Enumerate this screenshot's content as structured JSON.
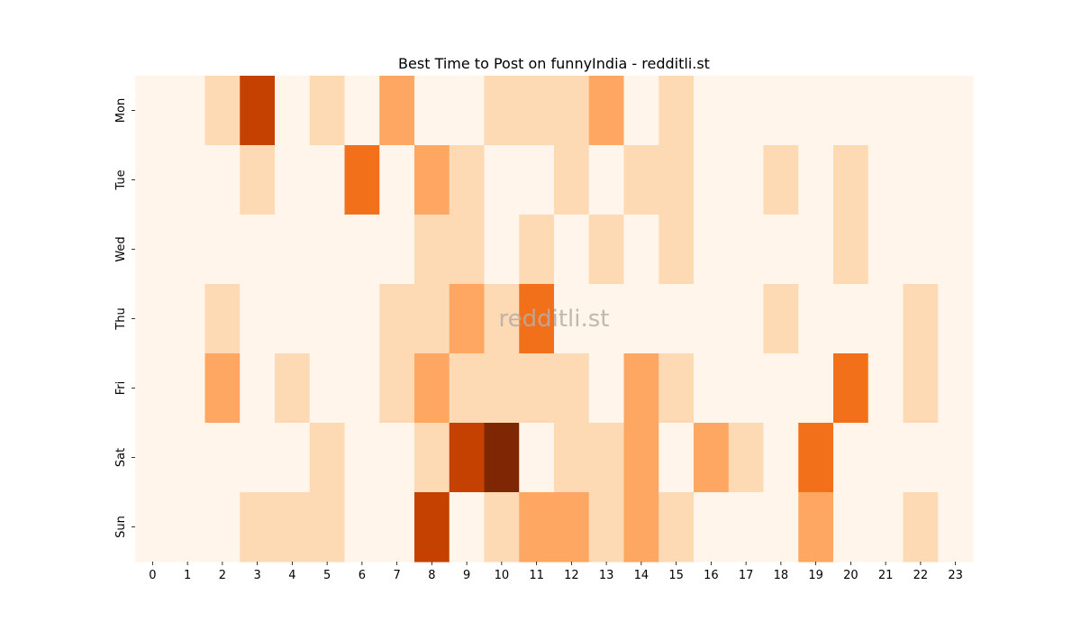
{
  "chart_data": {
    "type": "heatmap",
    "title": "Best Time to Post on funnyIndia - redditli.st",
    "watermark": "redditli.st",
    "x_categories": [
      "0",
      "1",
      "2",
      "3",
      "4",
      "5",
      "6",
      "7",
      "8",
      "9",
      "10",
      "11",
      "12",
      "13",
      "14",
      "15",
      "16",
      "17",
      "18",
      "19",
      "20",
      "21",
      "22",
      "23"
    ],
    "y_categories": [
      "Mon",
      "Tue",
      "Wed",
      "Thu",
      "Fri",
      "Sat",
      "Sun"
    ],
    "colormap": [
      "#fff5eb",
      "#fdd9b4",
      "#fda762",
      "#f3701b",
      "#c54102",
      "#7f2704"
    ],
    "value_range": [
      0,
      5
    ],
    "values": [
      [
        0,
        0,
        1,
        4,
        0,
        1,
        0,
        2,
        0,
        0,
        1,
        1,
        1,
        2,
        0,
        1,
        0,
        0,
        0,
        0,
        0,
        0,
        0,
        0
      ],
      [
        0,
        0,
        0,
        1,
        0,
        0,
        3,
        0,
        2,
        1,
        0,
        0,
        1,
        0,
        1,
        1,
        0,
        0,
        1,
        0,
        1,
        0,
        0,
        0
      ],
      [
        0,
        0,
        0,
        0,
        0,
        0,
        0,
        0,
        1,
        1,
        0,
        1,
        0,
        1,
        0,
        1,
        0,
        0,
        0,
        0,
        1,
        0,
        0,
        0
      ],
      [
        0,
        0,
        1,
        0,
        0,
        0,
        0,
        1,
        1,
        2,
        1,
        3,
        0,
        0,
        0,
        0,
        0,
        0,
        1,
        0,
        0,
        0,
        1,
        0
      ],
      [
        0,
        0,
        2,
        0,
        1,
        0,
        0,
        1,
        2,
        1,
        1,
        1,
        1,
        0,
        2,
        1,
        0,
        0,
        0,
        0,
        3,
        0,
        1,
        0
      ],
      [
        0,
        0,
        0,
        0,
        0,
        1,
        0,
        0,
        1,
        4,
        5,
        0,
        1,
        1,
        2,
        0,
        2,
        1,
        0,
        3,
        0,
        0,
        0,
        0
      ],
      [
        0,
        0,
        0,
        1,
        1,
        1,
        0,
        0,
        4,
        0,
        1,
        2,
        2,
        1,
        2,
        1,
        0,
        0,
        0,
        2,
        0,
        0,
        1,
        0
      ]
    ]
  }
}
